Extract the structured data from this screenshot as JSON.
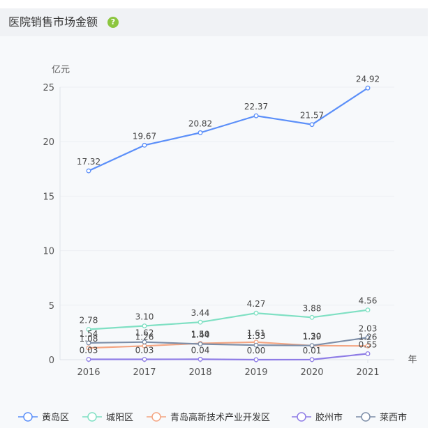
{
  "header": {
    "title": "医院销售市场金额",
    "help_icon": "question-circle-icon",
    "help_glyph": "?"
  },
  "chart_data": {
    "type": "line",
    "title": "医院销售市场金额",
    "ylabel": "亿元",
    "xlabel": "年",
    "categories": [
      "2016",
      "2017",
      "2018",
      "2019",
      "2020",
      "2021"
    ],
    "ylim": [
      0,
      25
    ],
    "yticks": [
      "0",
      "5",
      "10",
      "15",
      "20",
      "25"
    ],
    "grid": true,
    "legend_position": "bottom",
    "series": [
      {
        "name": "黄岛区",
        "color": "#5b8ff9",
        "values": [
          17.32,
          19.67,
          20.82,
          22.37,
          21.57,
          24.92
        ],
        "labels": [
          "17.32",
          "19.67",
          "20.82",
          "22.37",
          "21.57",
          "24.92"
        ]
      },
      {
        "name": "城阳区",
        "color": "#7fe0c3",
        "values": [
          2.78,
          3.1,
          3.44,
          4.27,
          3.88,
          4.56
        ],
        "labels": [
          "2.78",
          "3.10",
          "3.44",
          "4.27",
          "3.88",
          "4.56"
        ]
      },
      {
        "name": "青岛高新技术产业开发区",
        "color": "#f4a582",
        "values": [
          1.08,
          1.26,
          1.5,
          1.61,
          1.29,
          1.26
        ],
        "labels": [
          "1.08",
          "1.26",
          "1.50",
          "1.61",
          "1.29",
          "1.26"
        ]
      },
      {
        "name": "胶州市",
        "color": "#8e7ce6",
        "values": [
          0.03,
          0.03,
          0.04,
          0.0,
          0.01,
          0.55
        ],
        "labels": [
          "0.03",
          "0.03",
          "0.04",
          "0.00",
          "0.01",
          "0.55"
        ]
      },
      {
        "name": "莱西市",
        "color": "#7d8ea8",
        "values": [
          1.54,
          1.62,
          1.44,
          1.33,
          1.3,
          2.03
        ],
        "labels": [
          "1.54",
          "1.62",
          "1.44",
          "1.33",
          "1.30",
          "2.03"
        ]
      }
    ]
  }
}
